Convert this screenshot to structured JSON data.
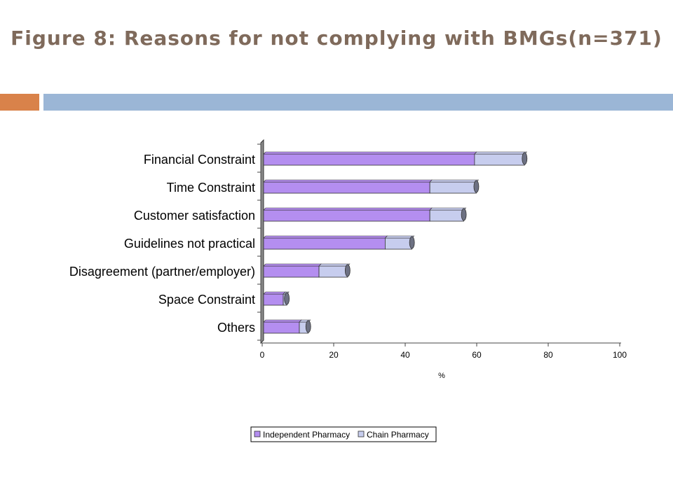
{
  "slide": {
    "title": "Figure 8:  Reasons for not complying with BMGs(n=371)",
    "title_color": "#7f6a5b",
    "accent_left_color": "#d9824a",
    "accent_right_color": "#9bb6d6"
  },
  "chart_data": {
    "type": "bar",
    "orientation": "horizontal",
    "stacked": true,
    "three_d": true,
    "title": "",
    "xlabel": "%",
    "ylabel": "",
    "xlim": [
      0,
      100
    ],
    "xticks": [
      0,
      20,
      40,
      60,
      80,
      100
    ],
    "grid": false,
    "legend_position": "bottom",
    "categories": [
      "Financial Constraint",
      "Time Constraint",
      "Customer satisfaction",
      "Guidelines not practical",
      "Disagreement (partner/employer)",
      "Space Constraint",
      "Others"
    ],
    "series": [
      {
        "name": "Independent Pharmacy",
        "color": "#b48ef0",
        "values": [
          59,
          46.5,
          46.5,
          34,
          15.5,
          5.5,
          10
        ]
      },
      {
        "name": "Chain Pharmacy",
        "color": "#c7cdee",
        "values": [
          14,
          13,
          9.5,
          7.5,
          8,
          1,
          2.5
        ]
      }
    ]
  }
}
